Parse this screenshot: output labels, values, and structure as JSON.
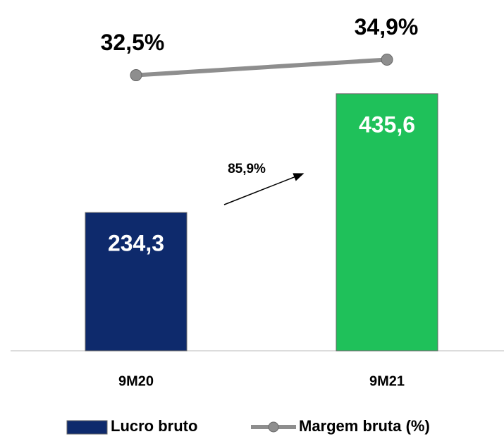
{
  "chart_data": {
    "type": "bar",
    "categories": [
      "9M20",
      "9M21"
    ],
    "series": [
      {
        "name": "Lucro bruto",
        "type": "bar",
        "colors": [
          "#0e2a6c",
          "#1fc15a"
        ],
        "color": "#0e2a6c",
        "values": [
          234.3,
          435.6
        ],
        "value_labels": [
          "234,3",
          "435,6"
        ]
      },
      {
        "name": "Margem bruta (%)",
        "type": "line",
        "axis": "y2",
        "color": "#8e8e8e",
        "values": [
          32.5,
          34.9
        ],
        "value_labels": [
          "32,5%",
          "34,9%"
        ]
      }
    ],
    "annotations": [
      "85,9%"
    ],
    "ylim": [
      0,
      500
    ],
    "y2lim": [
      -10,
      35.5
    ],
    "legend": "bottom"
  }
}
